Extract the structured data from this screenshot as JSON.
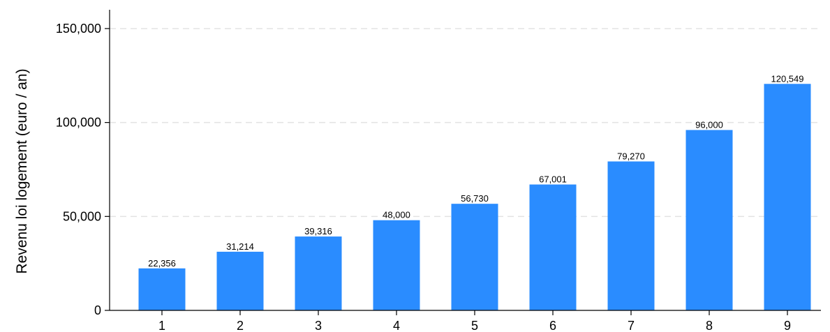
{
  "chart_data": {
    "type": "bar",
    "title": "",
    "xlabel": "",
    "ylabel": "Revenu loi logement (euro / an)",
    "categories": [
      "1",
      "2",
      "3",
      "4",
      "5",
      "6",
      "7",
      "8",
      "9"
    ],
    "values": [
      22356,
      31214,
      39316,
      48000,
      56730,
      67001,
      79270,
      96000,
      120549
    ],
    "value_labels": [
      "22,356",
      "31,214",
      "39,316",
      "48,000",
      "56,730",
      "67,001",
      "79,270",
      "96,000",
      "120,549"
    ],
    "ylim": [
      0,
      150000
    ],
    "yticks": [
      0,
      50000,
      100000,
      150000
    ],
    "ytick_labels": [
      "0",
      "50,000",
      "100,000",
      "150,000"
    ],
    "grid": "horizontal dashed",
    "legend": "none",
    "colors": {
      "bar": "#2a8cff",
      "grid": "#e3e3e3",
      "axis": "#000000",
      "text": "#000000"
    }
  }
}
